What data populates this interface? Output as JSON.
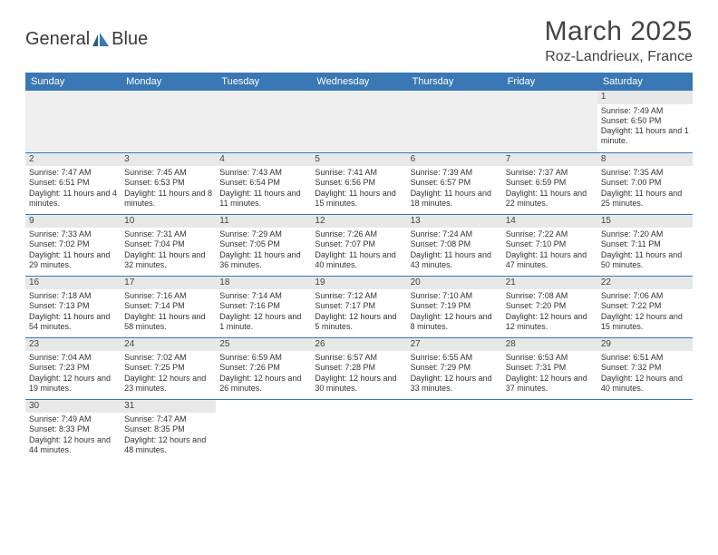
{
  "brand": {
    "name_a": "General",
    "name_b": "Blue"
  },
  "title": "March 2025",
  "location": "Roz-Landrieux, France",
  "colors": {
    "accent": "#3a78b5",
    "header_text": "#ffffff",
    "daynum_bg": "#e8e8e8",
    "blank_bg": "#efefef"
  },
  "typography": {
    "title_fontsize": 30,
    "location_fontsize": 16,
    "th_fontsize": 11,
    "cell_fontsize": 9
  },
  "day_headers": [
    "Sunday",
    "Monday",
    "Tuesday",
    "Wednesday",
    "Thursday",
    "Friday",
    "Saturday"
  ],
  "weeks": [
    [
      null,
      null,
      null,
      null,
      null,
      null,
      {
        "n": "1",
        "rise": "Sunrise: 7:49 AM",
        "set": "Sunset: 6:50 PM",
        "dl": "Daylight: 11 hours and 1 minute."
      }
    ],
    [
      {
        "n": "2",
        "rise": "Sunrise: 7:47 AM",
        "set": "Sunset: 6:51 PM",
        "dl": "Daylight: 11 hours and 4 minutes."
      },
      {
        "n": "3",
        "rise": "Sunrise: 7:45 AM",
        "set": "Sunset: 6:53 PM",
        "dl": "Daylight: 11 hours and 8 minutes."
      },
      {
        "n": "4",
        "rise": "Sunrise: 7:43 AM",
        "set": "Sunset: 6:54 PM",
        "dl": "Daylight: 11 hours and 11 minutes."
      },
      {
        "n": "5",
        "rise": "Sunrise: 7:41 AM",
        "set": "Sunset: 6:56 PM",
        "dl": "Daylight: 11 hours and 15 minutes."
      },
      {
        "n": "6",
        "rise": "Sunrise: 7:39 AM",
        "set": "Sunset: 6:57 PM",
        "dl": "Daylight: 11 hours and 18 minutes."
      },
      {
        "n": "7",
        "rise": "Sunrise: 7:37 AM",
        "set": "Sunset: 6:59 PM",
        "dl": "Daylight: 11 hours and 22 minutes."
      },
      {
        "n": "8",
        "rise": "Sunrise: 7:35 AM",
        "set": "Sunset: 7:00 PM",
        "dl": "Daylight: 11 hours and 25 minutes."
      }
    ],
    [
      {
        "n": "9",
        "rise": "Sunrise: 7:33 AM",
        "set": "Sunset: 7:02 PM",
        "dl": "Daylight: 11 hours and 29 minutes."
      },
      {
        "n": "10",
        "rise": "Sunrise: 7:31 AM",
        "set": "Sunset: 7:04 PM",
        "dl": "Daylight: 11 hours and 32 minutes."
      },
      {
        "n": "11",
        "rise": "Sunrise: 7:29 AM",
        "set": "Sunset: 7:05 PM",
        "dl": "Daylight: 11 hours and 36 minutes."
      },
      {
        "n": "12",
        "rise": "Sunrise: 7:26 AM",
        "set": "Sunset: 7:07 PM",
        "dl": "Daylight: 11 hours and 40 minutes."
      },
      {
        "n": "13",
        "rise": "Sunrise: 7:24 AM",
        "set": "Sunset: 7:08 PM",
        "dl": "Daylight: 11 hours and 43 minutes."
      },
      {
        "n": "14",
        "rise": "Sunrise: 7:22 AM",
        "set": "Sunset: 7:10 PM",
        "dl": "Daylight: 11 hours and 47 minutes."
      },
      {
        "n": "15",
        "rise": "Sunrise: 7:20 AM",
        "set": "Sunset: 7:11 PM",
        "dl": "Daylight: 11 hours and 50 minutes."
      }
    ],
    [
      {
        "n": "16",
        "rise": "Sunrise: 7:18 AM",
        "set": "Sunset: 7:13 PM",
        "dl": "Daylight: 11 hours and 54 minutes."
      },
      {
        "n": "17",
        "rise": "Sunrise: 7:16 AM",
        "set": "Sunset: 7:14 PM",
        "dl": "Daylight: 11 hours and 58 minutes."
      },
      {
        "n": "18",
        "rise": "Sunrise: 7:14 AM",
        "set": "Sunset: 7:16 PM",
        "dl": "Daylight: 12 hours and 1 minute."
      },
      {
        "n": "19",
        "rise": "Sunrise: 7:12 AM",
        "set": "Sunset: 7:17 PM",
        "dl": "Daylight: 12 hours and 5 minutes."
      },
      {
        "n": "20",
        "rise": "Sunrise: 7:10 AM",
        "set": "Sunset: 7:19 PM",
        "dl": "Daylight: 12 hours and 8 minutes."
      },
      {
        "n": "21",
        "rise": "Sunrise: 7:08 AM",
        "set": "Sunset: 7:20 PM",
        "dl": "Daylight: 12 hours and 12 minutes."
      },
      {
        "n": "22",
        "rise": "Sunrise: 7:06 AM",
        "set": "Sunset: 7:22 PM",
        "dl": "Daylight: 12 hours and 15 minutes."
      }
    ],
    [
      {
        "n": "23",
        "rise": "Sunrise: 7:04 AM",
        "set": "Sunset: 7:23 PM",
        "dl": "Daylight: 12 hours and 19 minutes."
      },
      {
        "n": "24",
        "rise": "Sunrise: 7:02 AM",
        "set": "Sunset: 7:25 PM",
        "dl": "Daylight: 12 hours and 23 minutes."
      },
      {
        "n": "25",
        "rise": "Sunrise: 6:59 AM",
        "set": "Sunset: 7:26 PM",
        "dl": "Daylight: 12 hours and 26 minutes."
      },
      {
        "n": "26",
        "rise": "Sunrise: 6:57 AM",
        "set": "Sunset: 7:28 PM",
        "dl": "Daylight: 12 hours and 30 minutes."
      },
      {
        "n": "27",
        "rise": "Sunrise: 6:55 AM",
        "set": "Sunset: 7:29 PM",
        "dl": "Daylight: 12 hours and 33 minutes."
      },
      {
        "n": "28",
        "rise": "Sunrise: 6:53 AM",
        "set": "Sunset: 7:31 PM",
        "dl": "Daylight: 12 hours and 37 minutes."
      },
      {
        "n": "29",
        "rise": "Sunrise: 6:51 AM",
        "set": "Sunset: 7:32 PM",
        "dl": "Daylight: 12 hours and 40 minutes."
      }
    ],
    [
      {
        "n": "30",
        "rise": "Sunrise: 7:49 AM",
        "set": "Sunset: 8:33 PM",
        "dl": "Daylight: 12 hours and 44 minutes."
      },
      {
        "n": "31",
        "rise": "Sunrise: 7:47 AM",
        "set": "Sunset: 8:35 PM",
        "dl": "Daylight: 12 hours and 48 minutes."
      },
      null,
      null,
      null,
      null,
      null
    ]
  ]
}
